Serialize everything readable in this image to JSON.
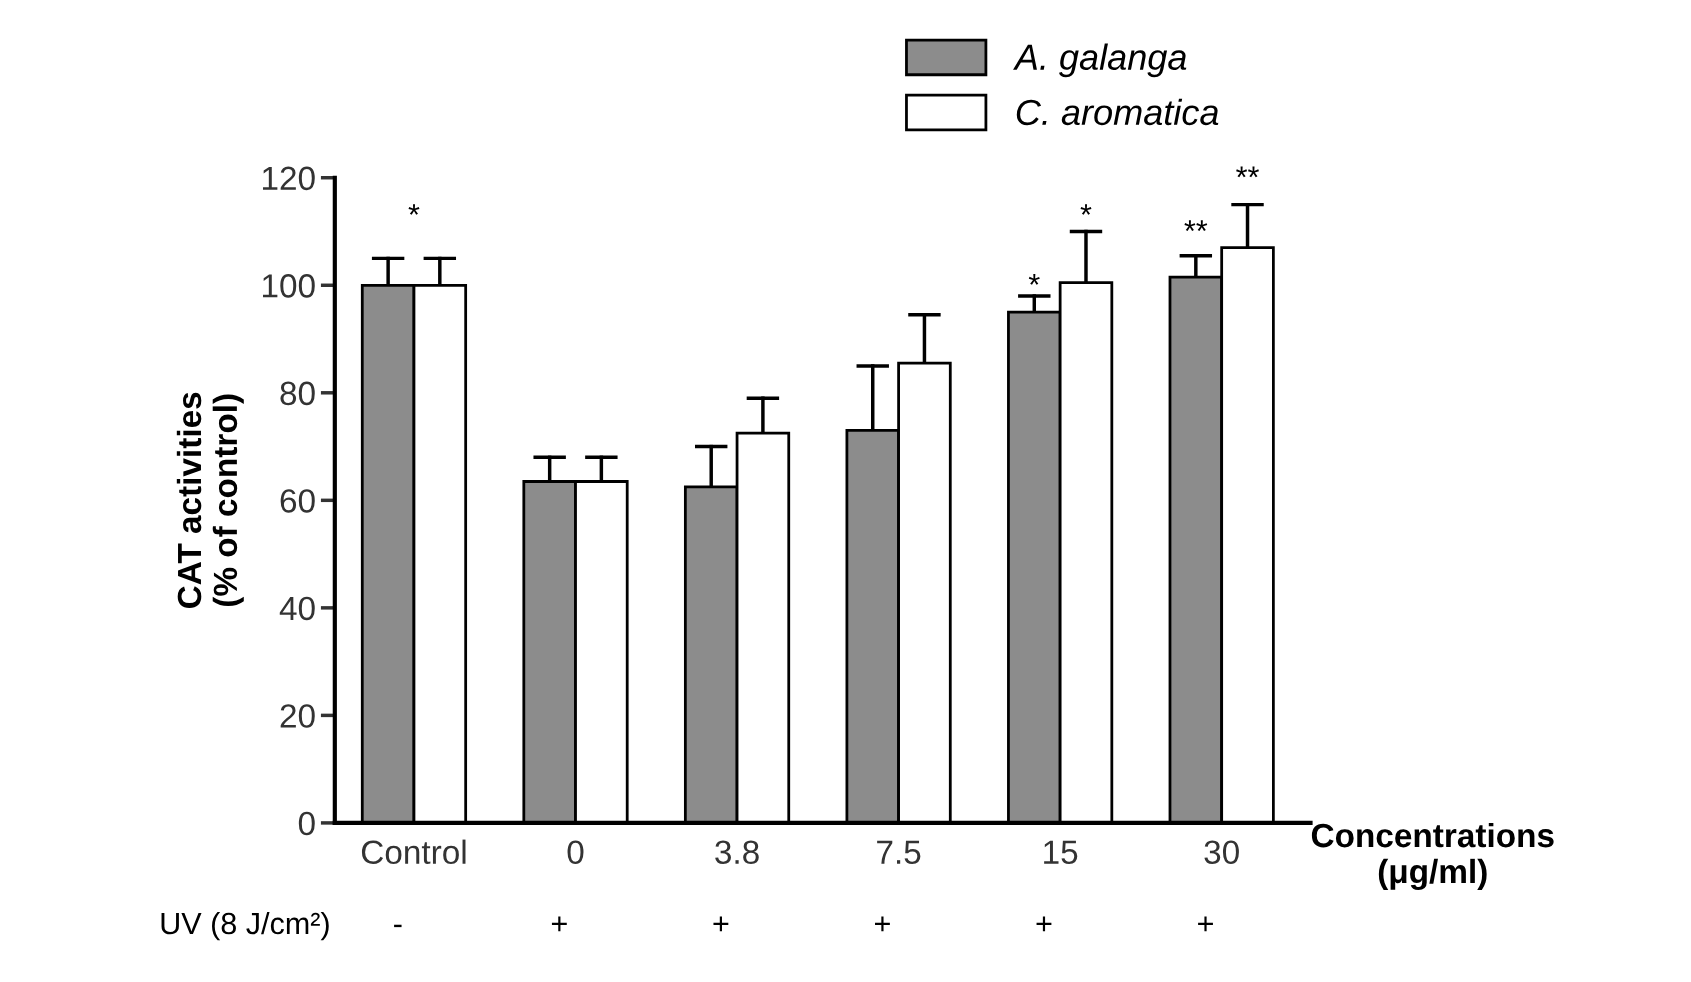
{
  "chart_data": {
    "type": "bar",
    "ylabel": "CAT activities\n(% of control)",
    "xlabel": "Concentrations\n(μg/ml)",
    "categories": [
      "Control",
      "0",
      "3.8",
      "7.5",
      "15",
      "30"
    ],
    "series": [
      {
        "name": "A. galanga",
        "color": "#8c8c8c",
        "values": [
          100,
          63.5,
          62.5,
          73,
          95,
          101.5
        ],
        "errors": [
          [
            100,
            105
          ],
          [
            63.5,
            68
          ],
          [
            62.5,
            70
          ],
          [
            73,
            85
          ],
          [
            95,
            98
          ],
          [
            101.5,
            105.5
          ]
        ]
      },
      {
        "name": "C. aromatica",
        "color": "#ffffff",
        "values": [
          100,
          63.5,
          72.5,
          85.5,
          100.5,
          107
        ],
        "errors": [
          [
            100,
            105
          ],
          [
            63.5,
            68
          ],
          [
            72.5,
            79
          ],
          [
            85.5,
            94.5
          ],
          [
            100.5,
            110
          ],
          [
            107,
            115
          ]
        ]
      }
    ],
    "ylim": [
      0,
      120
    ],
    "yticks": [
      0,
      20,
      40,
      60,
      80,
      100,
      120
    ],
    "grid": false,
    "legend": "top right",
    "annotations": [
      "*",
      "*",
      "*",
      "**",
      "**",
      "UV (8 J/cm²)",
      "-",
      "+",
      "+",
      "+",
      "+",
      "+"
    ]
  }
}
